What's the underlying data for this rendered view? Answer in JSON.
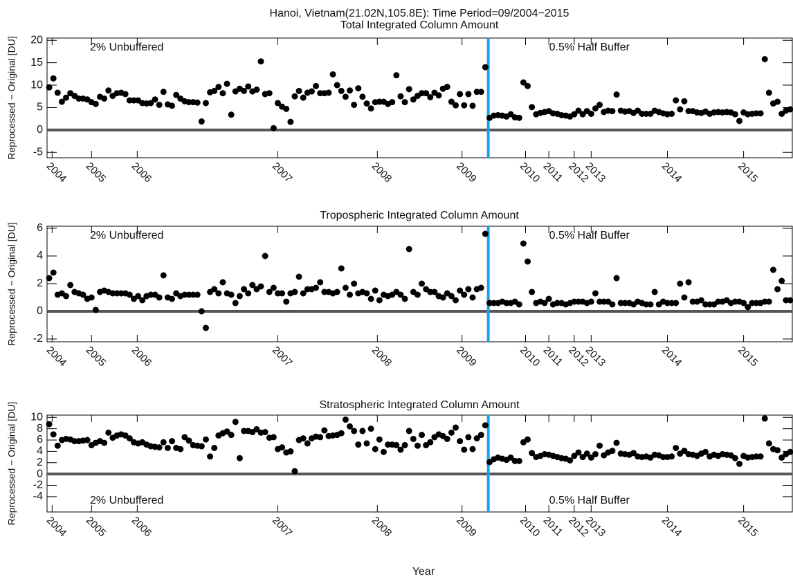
{
  "title": "Hanoi, Vietnam(21.02N,105.8E): Time Period=09/2004−2015",
  "x_label": "Year",
  "chart_data": [
    {
      "type": "scatter",
      "title": "Total Integrated Column Amount",
      "y_label": "Reprocessed − Original [DU]",
      "annotations": [
        "2% Unbuffered",
        "0.5% Half Buffer"
      ],
      "annotation_position": "top",
      "color": "#000000",
      "divider_x": 103.7,
      "divider_color": "#1aa3e8",
      "reference_y": 0,
      "xlim": [
        -0.5,
        175.5
      ],
      "ylim": [
        -6.2,
        20.5
      ],
      "yticks": [
        -5,
        0,
        5,
        10,
        15,
        20
      ],
      "xticks": [
        {
          "value": 0.7,
          "label": "2004"
        },
        {
          "value": 10,
          "label": "2005"
        },
        {
          "value": 20.8,
          "label": "2006"
        },
        {
          "value": 54,
          "label": "2007"
        },
        {
          "value": 77.5,
          "label": "2008"
        },
        {
          "value": 97.5,
          "label": "2009"
        },
        {
          "value": 112.5,
          "label": "2010"
        },
        {
          "value": 118,
          "label": "2011"
        },
        {
          "value": 124,
          "label": "2012"
        },
        {
          "value": 128,
          "label": "2013"
        },
        {
          "value": 146,
          "label": "2014"
        },
        {
          "value": 164,
          "label": "2015"
        }
      ],
      "x": [
        0,
        1,
        2,
        3,
        4,
        5,
        6,
        7,
        8,
        9,
        10,
        11,
        12,
        13,
        14,
        15,
        16,
        17,
        18,
        19,
        20,
        21,
        22,
        23,
        24,
        25,
        26,
        27,
        28,
        29,
        30,
        31,
        32,
        33,
        34,
        35,
        36,
        37,
        38,
        39,
        40,
        41,
        42,
        43,
        44,
        45,
        46,
        47,
        48,
        49,
        50,
        51,
        52,
        53,
        54,
        55,
        56,
        57,
        58,
        59,
        60,
        61,
        62,
        63,
        64,
        65,
        66,
        67,
        68,
        69,
        70,
        71,
        72,
        73,
        74,
        75,
        76,
        77,
        78,
        79,
        80,
        81,
        82,
        83,
        84,
        85,
        86,
        87,
        88,
        89,
        90,
        91,
        92,
        93,
        94,
        95,
        96,
        97,
        98,
        99,
        100,
        101,
        102,
        103,
        104,
        105,
        106,
        107,
        108,
        109,
        110,
        111,
        112,
        113,
        114,
        115,
        116,
        117,
        118,
        119,
        120,
        121,
        122,
        123,
        124,
        125,
        126,
        127,
        128,
        129,
        130,
        131,
        132,
        133,
        134,
        135,
        136,
        137,
        138,
        139,
        140,
        141,
        142,
        143,
        144,
        145,
        146,
        147,
        148,
        149,
        150,
        151,
        152,
        153,
        154,
        155,
        156,
        157,
        158,
        159,
        160,
        161,
        162,
        163,
        164,
        165,
        166,
        167,
        168,
        169,
        170,
        171,
        172,
        173,
        174,
        175
      ],
      "values": [
        9.5,
        11.5,
        8.3,
        6.3,
        7.2,
        8.2,
        7.6,
        7.0,
        7.0,
        6.8,
        6.2,
        5.8,
        7.4,
        7.0,
        8.8,
        7.6,
        8.2,
        8.3,
        8.0,
        6.6,
        6.6,
        6.6,
        6.0,
        5.9,
        6.0,
        6.8,
        5.6,
        8.5,
        5.7,
        5.4,
        7.8,
        7.0,
        6.4,
        6.2,
        6.2,
        6.1,
        1.9,
        6.0,
        8.4,
        8.7,
        9.6,
        8.2,
        10.3,
        3.4,
        8.6,
        9.2,
        8.7,
        9.7,
        8.6,
        9.0,
        15.3,
        8.0,
        8.2,
        0.4,
        6.0,
        5.2,
        4.7,
        1.8,
        7.5,
        8.7,
        7.2,
        8.3,
        8.6,
        9.8,
        8.2,
        8.2,
        8.3,
        12.4,
        10.0,
        8.7,
        7.4,
        8.8,
        5.6,
        9.3,
        7.4,
        5.9,
        4.8,
        6.2,
        6.3,
        6.3,
        5.8,
        6.2,
        12.2,
        7.5,
        6.2,
        9.1,
        6.8,
        7.6,
        8.2,
        8.2,
        7.3,
        8.3,
        7.7,
        9.2,
        9.6,
        6.3,
        5.5,
        8.0,
        5.5,
        8.0,
        5.4,
        8.5,
        8.5,
        14.0,
        2.7,
        3.2,
        3.3,
        3.2,
        3.0,
        3.5,
        2.8,
        2.7,
        10.6,
        9.8,
        5.1,
        3.5,
        3.8,
        4.0,
        4.2,
        3.7,
        3.6,
        3.3,
        3.2,
        3.0,
        3.5,
        4.3,
        3.5,
        4.2,
        3.6,
        4.8,
        5.6,
        4.0,
        4.3,
        4.2,
        7.9,
        4.3,
        4.1,
        4.2,
        3.8,
        4.3,
        3.6,
        3.6,
        3.6,
        4.3,
        4.0,
        3.7,
        3.5,
        3.6,
        6.6,
        4.6,
        6.4,
        4.2,
        4.2,
        3.9,
        3.8,
        4.1,
        3.6,
        3.9,
        4.0,
        3.9,
        4.0,
        3.9,
        3.5,
        2.0,
        3.9,
        3.5,
        3.6,
        3.7,
        3.7,
        15.8,
        8.3,
        5.9,
        6.3,
        3.6,
        4.3,
        4.6
      ]
    },
    {
      "type": "scatter",
      "title": "Tropospheric Integrated Column Amount",
      "y_label": "Reprocessed − Original [DU]",
      "annotations": [
        "2% Unbuffered",
        "0.5% Half Buffer"
      ],
      "annotation_position": "top",
      "color": "#000000",
      "divider_x": 103.7,
      "divider_color": "#1aa3e8",
      "reference_y": 0,
      "xlim": [
        -0.5,
        175.5
      ],
      "ylim": [
        -2.2,
        6.15
      ],
      "yticks": [
        -2,
        0,
        2,
        4,
        6
      ],
      "xticks": [
        {
          "value": 0.7,
          "label": "2004"
        },
        {
          "value": 10,
          "label": "2005"
        },
        {
          "value": 20.8,
          "label": "2006"
        },
        {
          "value": 54,
          "label": "2007"
        },
        {
          "value": 77.5,
          "label": "2008"
        },
        {
          "value": 97.5,
          "label": "2009"
        },
        {
          "value": 112.5,
          "label": "2010"
        },
        {
          "value": 118,
          "label": "2011"
        },
        {
          "value": 124,
          "label": "2012"
        },
        {
          "value": 128,
          "label": "2013"
        },
        {
          "value": 146,
          "label": "2014"
        },
        {
          "value": 164,
          "label": "2015"
        }
      ],
      "x": [
        0,
        1,
        2,
        3,
        4,
        5,
        6,
        7,
        8,
        9,
        10,
        11,
        12,
        13,
        14,
        15,
        16,
        17,
        18,
        19,
        20,
        21,
        22,
        23,
        24,
        25,
        26,
        27,
        28,
        29,
        30,
        31,
        32,
        33,
        34,
        35,
        36,
        37,
        38,
        39,
        40,
        41,
        42,
        43,
        44,
        45,
        46,
        47,
        48,
        49,
        50,
        51,
        52,
        53,
        54,
        55,
        56,
        57,
        58,
        59,
        60,
        61,
        62,
        63,
        64,
        65,
        66,
        67,
        68,
        69,
        70,
        71,
        72,
        73,
        74,
        75,
        76,
        77,
        78,
        79,
        80,
        81,
        82,
        83,
        84,
        85,
        86,
        87,
        88,
        89,
        90,
        91,
        92,
        93,
        94,
        95,
        96,
        97,
        98,
        99,
        100,
        101,
        102,
        103,
        104,
        105,
        106,
        107,
        108,
        109,
        110,
        111,
        112,
        113,
        114,
        115,
        116,
        117,
        118,
        119,
        120,
        121,
        122,
        123,
        124,
        125,
        126,
        127,
        128,
        129,
        130,
        131,
        132,
        133,
        134,
        135,
        136,
        137,
        138,
        139,
        140,
        141,
        142,
        143,
        144,
        145,
        146,
        147,
        148,
        149,
        150,
        151,
        152,
        153,
        154,
        155,
        156,
        157,
        158,
        159,
        160,
        161,
        162,
        163,
        164,
        165,
        166,
        167,
        168,
        169,
        170,
        171,
        172,
        173,
        174,
        175
      ],
      "values": [
        2.4,
        2.8,
        1.2,
        1.3,
        1.1,
        1.9,
        1.4,
        1.3,
        1.2,
        0.9,
        1.0,
        0.1,
        1.4,
        1.5,
        1.4,
        1.3,
        1.3,
        1.3,
        1.3,
        1.2,
        0.9,
        1.1,
        0.8,
        1.1,
        1.2,
        1.2,
        1.0,
        2.6,
        1.0,
        0.9,
        1.3,
        1.1,
        1.2,
        1.2,
        1.2,
        1.2,
        0.0,
        -1.2,
        1.4,
        1.6,
        1.3,
        2.1,
        1.3,
        1.2,
        0.6,
        1.1,
        1.6,
        1.3,
        1.9,
        1.6,
        1.8,
        4.0,
        1.4,
        1.7,
        1.3,
        1.3,
        0.7,
        1.3,
        1.4,
        2.5,
        1.3,
        1.6,
        1.6,
        1.7,
        2.1,
        1.4,
        1.4,
        1.3,
        1.4,
        3.1,
        1.7,
        1.2,
        2.0,
        1.3,
        1.4,
        1.3,
        0.9,
        1.5,
        0.8,
        1.2,
        1.1,
        1.2,
        1.4,
        1.2,
        0.9,
        4.5,
        1.4,
        1.2,
        2.0,
        1.6,
        1.4,
        1.4,
        1.1,
        1.0,
        1.3,
        1.1,
        0.8,
        1.5,
        1.2,
        1.6,
        1.0,
        1.6,
        1.7,
        5.6,
        0.6,
        0.6,
        0.6,
        0.7,
        0.6,
        0.6,
        0.7,
        0.5,
        4.9,
        3.6,
        1.4,
        0.6,
        0.7,
        0.6,
        0.9,
        0.5,
        0.6,
        0.6,
        0.5,
        0.6,
        0.7,
        0.7,
        0.7,
        0.6,
        0.7,
        1.3,
        0.7,
        0.7,
        0.7,
        0.5,
        2.4,
        0.6,
        0.6,
        0.6,
        0.5,
        0.7,
        0.6,
        0.5,
        0.5,
        1.4,
        0.5,
        0.7,
        0.6,
        0.6,
        0.6,
        2.0,
        1.0,
        2.1,
        0.7,
        0.7,
        0.8,
        0.5,
        0.5,
        0.5,
        0.7,
        0.7,
        0.8,
        0.6,
        0.7,
        0.7,
        0.6,
        0.3,
        0.6,
        0.6,
        0.6,
        0.7,
        0.7,
        3.0,
        1.6,
        2.2,
        0.8,
        0.8
      ]
    },
    {
      "type": "scatter",
      "title": "Stratospheric Integrated Column Amount",
      "y_label": "Reprocessed − Original [DU]",
      "annotations": [
        "2% Unbuffered",
        "0.5% Half Buffer"
      ],
      "annotation_position": "bottom",
      "color": "#000000",
      "divider_x": 103.7,
      "divider_color": "#1aa3e8",
      "reference_y": 0,
      "xlim": [
        -0.5,
        175.5
      ],
      "ylim": [
        -6.7,
        10.4
      ],
      "yticks": [
        -4,
        -2,
        0,
        2,
        4,
        6,
        8,
        10
      ],
      "xticks": [
        {
          "value": 0.7,
          "label": "2004"
        },
        {
          "value": 10,
          "label": "2005"
        },
        {
          "value": 20.8,
          "label": "2006"
        },
        {
          "value": 54,
          "label": "2007"
        },
        {
          "value": 77.5,
          "label": "2008"
        },
        {
          "value": 97.5,
          "label": "2009"
        },
        {
          "value": 112.5,
          "label": "2010"
        },
        {
          "value": 118,
          "label": "2011"
        },
        {
          "value": 124,
          "label": "2012"
        },
        {
          "value": 128,
          "label": "2013"
        },
        {
          "value": 146,
          "label": "2014"
        },
        {
          "value": 164,
          "label": "2015"
        }
      ],
      "x": [
        0,
        1,
        2,
        3,
        4,
        5,
        6,
        7,
        8,
        9,
        10,
        11,
        12,
        13,
        14,
        15,
        16,
        17,
        18,
        19,
        20,
        21,
        22,
        23,
        24,
        25,
        26,
        27,
        28,
        29,
        30,
        31,
        32,
        33,
        34,
        35,
        36,
        37,
        38,
        39,
        40,
        41,
        42,
        43,
        44,
        45,
        46,
        47,
        48,
        49,
        50,
        51,
        52,
        53,
        54,
        55,
        56,
        57,
        58,
        59,
        60,
        61,
        62,
        63,
        64,
        65,
        66,
        67,
        68,
        69,
        70,
        71,
        72,
        73,
        74,
        75,
        76,
        77,
        78,
        79,
        80,
        81,
        82,
        83,
        84,
        85,
        86,
        87,
        88,
        89,
        90,
        91,
        92,
        93,
        94,
        95,
        96,
        97,
        98,
        99,
        100,
        101,
        102,
        103,
        104,
        105,
        106,
        107,
        108,
        109,
        110,
        111,
        112,
        113,
        114,
        115,
        116,
        117,
        118,
        119,
        120,
        121,
        122,
        123,
        124,
        125,
        126,
        127,
        128,
        129,
        130,
        131,
        132,
        133,
        134,
        135,
        136,
        137,
        138,
        139,
        140,
        141,
        142,
        143,
        144,
        145,
        146,
        147,
        148,
        149,
        150,
        151,
        152,
        153,
        154,
        155,
        156,
        157,
        158,
        159,
        160,
        161,
        162,
        163,
        164,
        165,
        166,
        167,
        168,
        169,
        170,
        171,
        172,
        173,
        174,
        175
      ],
      "values": [
        8.8,
        7.0,
        5.0,
        6.0,
        6.2,
        6.1,
        5.8,
        5.8,
        5.9,
        6.0,
        5.1,
        5.5,
        5.8,
        5.5,
        7.3,
        6.4,
        6.8,
        7.0,
        6.8,
        6.3,
        5.6,
        5.4,
        5.6,
        5.2,
        4.9,
        4.8,
        4.7,
        5.6,
        4.6,
        5.8,
        4.6,
        4.4,
        6.5,
        5.9,
        5.1,
        5.0,
        4.9,
        6.1,
        3.1,
        4.6,
        6.8,
        7.2,
        7.5,
        6.9,
        9.2,
        2.8,
        7.6,
        7.6,
        7.4,
        7.9,
        7.3,
        7.4,
        6.4,
        6.5,
        4.4,
        4.7,
        3.8,
        4.0,
        0.5,
        6.0,
        6.3,
        5.4,
        6.3,
        6.6,
        6.5,
        7.7,
        6.7,
        6.8,
        6.9,
        7.2,
        9.6,
        8.4,
        7.6,
        5.2,
        7.6,
        5.4,
        8.0,
        4.4,
        6.1,
        3.9,
        5.2,
        5.2,
        5.1,
        4.3,
        5.1,
        7.6,
        6.2,
        5.0,
        6.9,
        5.1,
        5.6,
        6.5,
        7.0,
        6.7,
        6.2,
        7.3,
        8.2,
        5.8,
        4.3,
        6.5,
        4.4,
        6.3,
        6.9,
        8.6,
        2.1,
        2.6,
        2.9,
        2.7,
        2.5,
        2.9,
        2.3,
        2.3,
        5.6,
        6.1,
        3.7,
        3.0,
        3.2,
        3.5,
        3.4,
        3.2,
        3.0,
        2.8,
        2.7,
        2.4,
        3.2,
        3.8,
        3.0,
        3.6,
        2.9,
        3.5,
        5.0,
        3.3,
        3.8,
        4.1,
        5.5,
        3.6,
        3.5,
        3.4,
        3.7,
        3.1,
        3.0,
        3.1,
        2.9,
        3.4,
        3.3,
        3.0,
        3.0,
        3.1,
        4.6,
        3.6,
        4.1,
        3.5,
        3.4,
        3.2,
        3.6,
        3.9,
        3.1,
        3.4,
        3.2,
        3.5,
        3.4,
        3.3,
        2.8,
        1.8,
        3.2,
        2.9,
        3.0,
        3.1,
        3.1,
        9.8,
        5.4,
        4.4,
        4.2,
        2.9,
        3.5,
        3.9
      ]
    }
  ]
}
